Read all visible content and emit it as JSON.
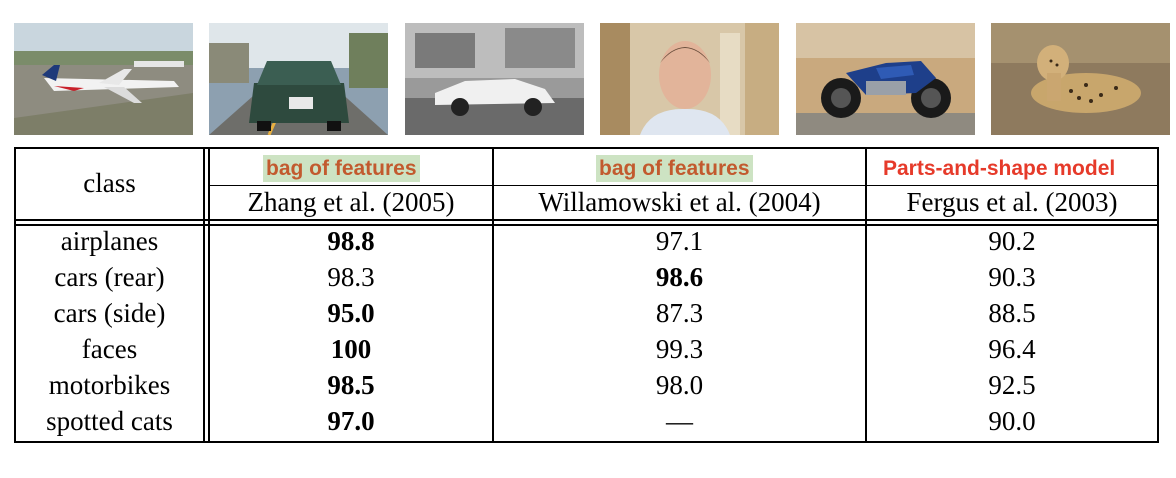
{
  "thumbnails": [
    {
      "label": "airplanes"
    },
    {
      "label": "cars (rear)"
    },
    {
      "label": "cars (side)"
    },
    {
      "label": "faces"
    },
    {
      "label": "motorbikes"
    },
    {
      "label": "spotted cats"
    }
  ],
  "table": {
    "class_header": "class",
    "methods": [
      {
        "tag": "bag of features",
        "citation": "Zhang et al. (2005)"
      },
      {
        "tag": "bag of features",
        "citation": "Willamowski et al. (2004)"
      },
      {
        "tag": "Parts-and-shape model",
        "citation": "Fergus et al. (2003)"
      }
    ],
    "rows": [
      {
        "class": "airplanes",
        "values": [
          "98.8",
          "97.1",
          "90.2"
        ],
        "bold": [
          0
        ]
      },
      {
        "class": "cars (rear)",
        "values": [
          "98.3",
          "98.6",
          "90.3"
        ],
        "bold": [
          1
        ]
      },
      {
        "class": "cars (side)",
        "values": [
          "95.0",
          "87.3",
          "88.5"
        ],
        "bold": [
          0
        ]
      },
      {
        "class": "faces",
        "values": [
          "100",
          "99.3",
          "96.4"
        ],
        "bold": [
          0
        ]
      },
      {
        "class": "motorbikes",
        "values": [
          "98.5",
          "98.0",
          "92.5"
        ],
        "bold": [
          0
        ]
      },
      {
        "class": "spotted cats",
        "values": [
          "97.0",
          "—",
          "90.0"
        ],
        "bold": [
          0
        ]
      }
    ]
  },
  "colors": {
    "bag_tag_text": "#c25a2e",
    "bag_tag_highlight": "#cde3c3",
    "parts_tag_text": "#e63a2a"
  }
}
